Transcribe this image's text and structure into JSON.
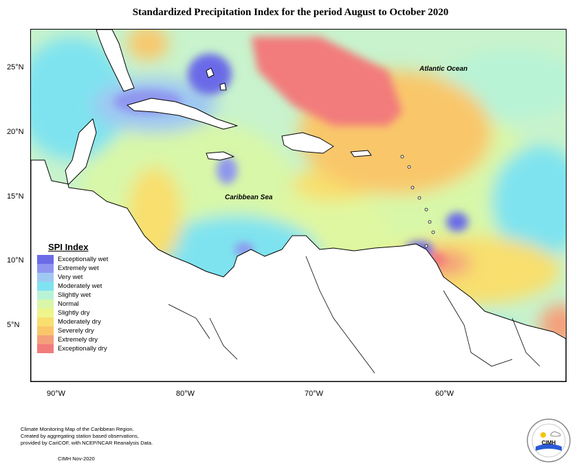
{
  "title": "Standardized Precipitation Index for the period August to October 2020",
  "map": {
    "labels": {
      "ocean": "Atlantic Ocean",
      "sea": "Caribbean Sea"
    },
    "lat_ticks": [
      "25°N",
      "20°N",
      "15°N",
      "10°N",
      "5°N"
    ],
    "lon_ticks": [
      "90°W",
      "80°W",
      "70°W",
      "60°W"
    ]
  },
  "legend": {
    "title": "SPI Index",
    "items": [
      {
        "label": "Exceptionally wet",
        "color": "#6b6be8"
      },
      {
        "label": "Extremely wet",
        "color": "#8f96ef"
      },
      {
        "label": "Very wet",
        "color": "#9fc8f2"
      },
      {
        "label": "Moderately wet",
        "color": "#7fe3ef"
      },
      {
        "label": "Slightly wet",
        "color": "#b8f3d6"
      },
      {
        "label": "Normal",
        "color": "#d8f7a8"
      },
      {
        "label": "Slightly dry",
        "color": "#eef58c"
      },
      {
        "label": "Moderately dry",
        "color": "#f8df6e"
      },
      {
        "label": "Severely dry",
        "color": "#f9c76a"
      },
      {
        "label": "Extremely dry",
        "color": "#f4a07a"
      },
      {
        "label": "Exceptionally dry",
        "color": "#f27c7c"
      }
    ]
  },
  "credit": {
    "lines": [
      "Climate Monitoring Map of the Caribbean Region.",
      "Created by aggregating station based observations,",
      "provided by CariCOF, with NCEP/NCAR Reanalysis Data."
    ],
    "date": "CIMH Nov-2020"
  },
  "logo": {
    "text": "CIMH"
  }
}
